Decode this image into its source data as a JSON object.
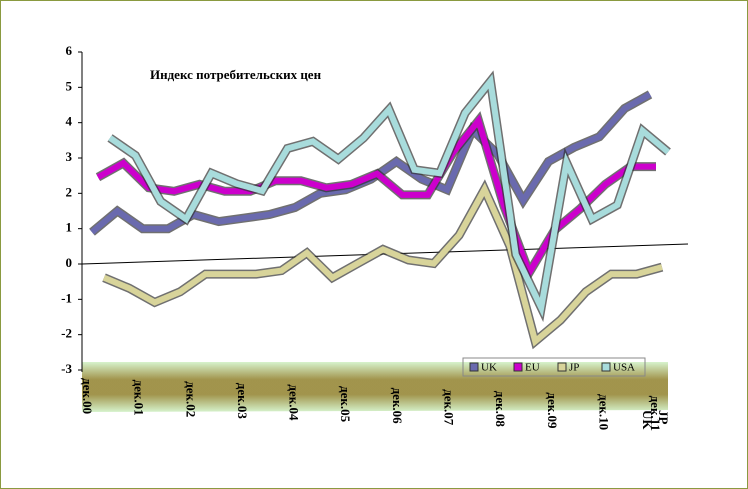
{
  "chart_data": {
    "type": "line",
    "title": "Индекс потребительских цен",
    "categories": [
      "дек.00",
      null,
      "дек.01",
      null,
      "дек.02",
      null,
      "дек.03",
      null,
      "дек.04",
      null,
      "дек.05",
      null,
      "дек.06",
      null,
      "дек.07",
      null,
      "дек.08",
      null,
      "дек.09",
      null,
      "дек.10",
      null,
      "дек.11"
    ],
    "series": [
      {
        "name": "UK",
        "color": "#6a6aae",
        "values": [
          0.9,
          1.5,
          1.0,
          1.0,
          1.4,
          1.2,
          1.3,
          1.4,
          1.6,
          2.0,
          2.1,
          2.4,
          2.9,
          2.4,
          2.1,
          3.8,
          3.1,
          1.8,
          2.9,
          3.3,
          3.6,
          4.4,
          4.8
        ]
      },
      {
        "name": "EU",
        "color": "#cc00cc",
        "values": [
          2.4,
          2.8,
          2.1,
          2.0,
          2.2,
          2.0,
          2.0,
          2.3,
          2.3,
          2.1,
          2.2,
          2.5,
          1.9,
          1.9,
          3.1,
          4.0,
          1.6,
          -0.3,
          0.9,
          1.5,
          2.2,
          2.7,
          2.7
        ]
      },
      {
        "name": "JP",
        "color": "#d8d49a",
        "values": [
          -0.5,
          -0.8,
          -1.2,
          -0.9,
          -0.4,
          -0.4,
          -0.4,
          -0.3,
          0.2,
          -0.5,
          -0.1,
          0.3,
          0.0,
          -0.1,
          0.7,
          2.0,
          0.4,
          -2.3,
          -1.7,
          -0.9,
          -0.4,
          -0.4,
          -0.2
        ]
      },
      {
        "name": "USA",
        "color": "#a8dcdc",
        "values": [
          3.4,
          2.9,
          1.6,
          1.1,
          2.4,
          2.1,
          1.9,
          3.1,
          3.3,
          2.8,
          3.4,
          4.2,
          2.5,
          2.4,
          4.1,
          5.0,
          0.1,
          -1.4,
          2.7,
          1.1,
          1.5,
          3.6,
          3.0
        ]
      }
    ],
    "depth_ticks": [
      "UK",
      "JP"
    ],
    "ylim": [
      -3,
      6
    ],
    "yticks": [
      -3,
      -2,
      -1,
      0,
      1,
      2,
      3,
      4,
      5,
      6
    ]
  }
}
